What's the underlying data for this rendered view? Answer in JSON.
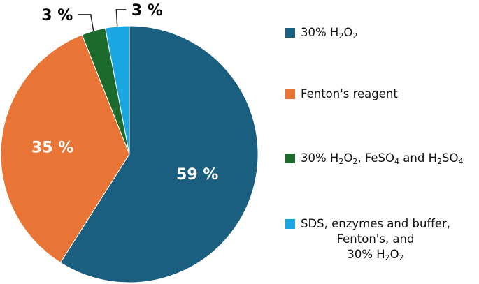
{
  "chart_data": {
    "type": "pie",
    "title": "",
    "slices": [
      {
        "label_parts": [
          [
            "30% H",
            "2",
            "O",
            "2"
          ]
        ],
        "value": 59,
        "display": "59 %",
        "color": "#1a5e80"
      },
      {
        "label_parts": [
          [
            "Fenton's reagent"
          ]
        ],
        "value": 35,
        "display": "35 %",
        "color": "#e87435"
      },
      {
        "label_parts": [
          [
            "30% H",
            "2",
            "O",
            "2",
            ", FeSO",
            "4",
            " and H",
            "2",
            "SO",
            "4"
          ]
        ],
        "value": 3,
        "display": "3 %",
        "color": "#1d6b2c"
      },
      {
        "label_parts": [
          [
            "SDS, enzymes and buffer,"
          ],
          [
            "Fenton's, and"
          ],
          [
            "30% H",
            "2",
            "O",
            "2"
          ]
        ],
        "value": 3,
        "display": "3 %",
        "color": "#1aa6e0"
      }
    ],
    "legend_position": "right",
    "start_angle_deg": 0,
    "direction": "counterclockwise-from-top"
  }
}
